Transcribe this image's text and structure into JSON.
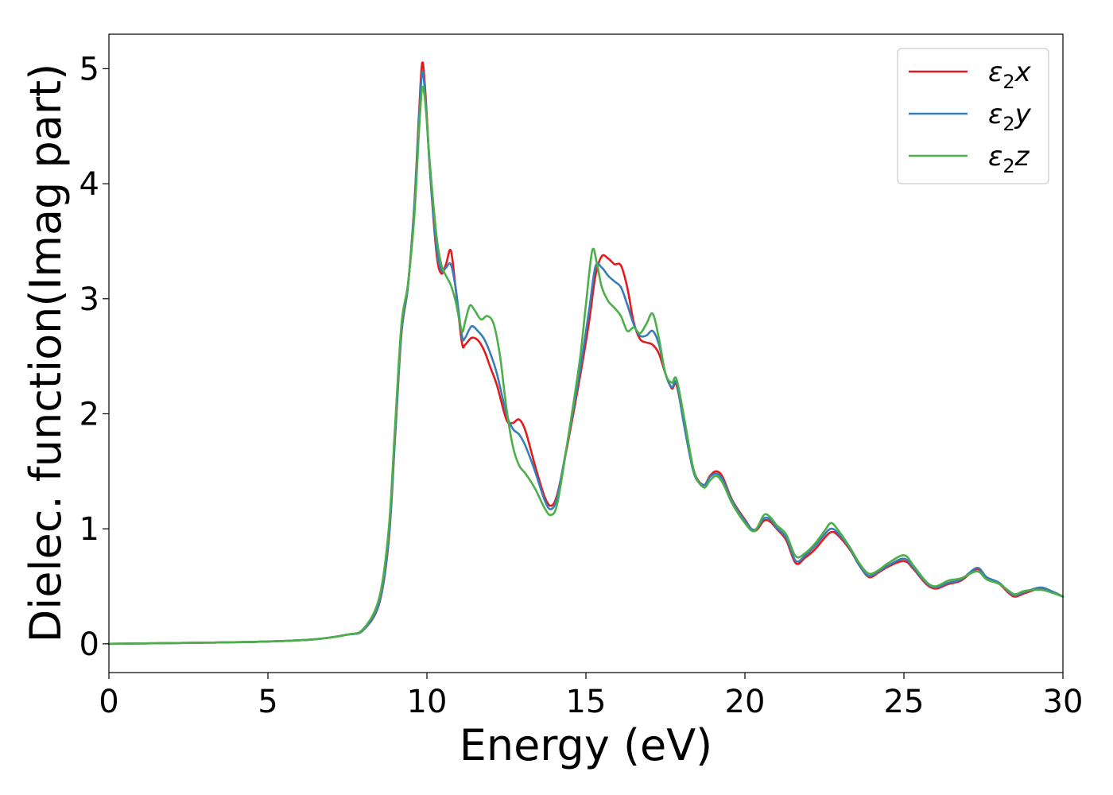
{
  "chart_data": {
    "type": "line",
    "title": "",
    "xlabel": "Energy (eV)",
    "ylabel": "Dielec. function(Imag part)",
    "xlim": [
      0,
      30
    ],
    "ylim": [
      -0.25,
      5.3
    ],
    "xticks": [
      0,
      5,
      10,
      15,
      20,
      25,
      30
    ],
    "xtick_labels": [
      "0",
      "5",
      "10",
      "15",
      "20",
      "25",
      "30"
    ],
    "yticks": [
      0,
      1,
      2,
      3,
      4,
      5
    ],
    "ytick_labels": [
      "0",
      "1",
      "2",
      "3",
      "4",
      "5"
    ],
    "grid": false,
    "legend_position": "top-right",
    "series": [
      {
        "name": "ε2x",
        "legend_main": "ε",
        "legend_sub": "2",
        "legend_suffix": "x",
        "color": "#e41a1c",
        "points": [
          [
            0,
            0.0
          ],
          [
            3,
            0.01
          ],
          [
            5,
            0.02
          ],
          [
            6.5,
            0.04
          ],
          [
            7.5,
            0.08
          ],
          [
            8,
            0.12
          ],
          [
            8.5,
            0.35
          ],
          [
            8.8,
            0.9
          ],
          [
            9.0,
            1.8
          ],
          [
            9.2,
            2.7
          ],
          [
            9.4,
            3.1
          ],
          [
            9.6,
            3.8
          ],
          [
            9.75,
            4.6
          ],
          [
            9.85,
            5.05
          ],
          [
            9.95,
            4.8
          ],
          [
            10.1,
            4.1
          ],
          [
            10.3,
            3.4
          ],
          [
            10.45,
            3.22
          ],
          [
            10.6,
            3.3
          ],
          [
            10.75,
            3.42
          ],
          [
            10.9,
            3.1
          ],
          [
            11.1,
            2.62
          ],
          [
            11.2,
            2.6
          ],
          [
            11.4,
            2.66
          ],
          [
            11.6,
            2.64
          ],
          [
            11.8,
            2.55
          ],
          [
            12.0,
            2.4
          ],
          [
            12.2,
            2.25
          ],
          [
            12.5,
            1.95
          ],
          [
            12.7,
            1.92
          ],
          [
            12.9,
            1.95
          ],
          [
            13.1,
            1.85
          ],
          [
            13.4,
            1.55
          ],
          [
            13.7,
            1.28
          ],
          [
            13.9,
            1.2
          ],
          [
            14.1,
            1.3
          ],
          [
            14.4,
            1.7
          ],
          [
            14.8,
            2.3
          ],
          [
            15.1,
            2.8
          ],
          [
            15.3,
            3.2
          ],
          [
            15.5,
            3.37
          ],
          [
            15.7,
            3.35
          ],
          [
            15.9,
            3.3
          ],
          [
            16.1,
            3.29
          ],
          [
            16.3,
            3.1
          ],
          [
            16.5,
            2.8
          ],
          [
            16.7,
            2.65
          ],
          [
            16.9,
            2.62
          ],
          [
            17.1,
            2.6
          ],
          [
            17.3,
            2.52
          ],
          [
            17.5,
            2.35
          ],
          [
            17.7,
            2.22
          ],
          [
            17.85,
            2.25
          ],
          [
            18.1,
            1.9
          ],
          [
            18.4,
            1.5
          ],
          [
            18.7,
            1.38
          ],
          [
            18.9,
            1.46
          ],
          [
            19.1,
            1.5
          ],
          [
            19.3,
            1.45
          ],
          [
            19.6,
            1.25
          ],
          [
            20.0,
            1.08
          ],
          [
            20.3,
            0.98
          ],
          [
            20.6,
            1.07
          ],
          [
            20.8,
            1.06
          ],
          [
            21.0,
            1.0
          ],
          [
            21.3,
            0.9
          ],
          [
            21.6,
            0.7
          ],
          [
            21.9,
            0.75
          ],
          [
            22.2,
            0.82
          ],
          [
            22.5,
            0.92
          ],
          [
            22.7,
            0.97
          ],
          [
            22.9,
            0.95
          ],
          [
            23.3,
            0.82
          ],
          [
            23.6,
            0.68
          ],
          [
            23.9,
            0.58
          ],
          [
            24.2,
            0.62
          ],
          [
            24.5,
            0.67
          ],
          [
            25.0,
            0.72
          ],
          [
            25.3,
            0.65
          ],
          [
            25.7,
            0.52
          ],
          [
            26.0,
            0.48
          ],
          [
            26.4,
            0.52
          ],
          [
            26.8,
            0.55
          ],
          [
            27.3,
            0.65
          ],
          [
            27.6,
            0.57
          ],
          [
            28.0,
            0.52
          ],
          [
            28.3,
            0.44
          ],
          [
            28.5,
            0.41
          ],
          [
            28.8,
            0.44
          ],
          [
            29.3,
            0.48
          ],
          [
            29.7,
            0.45
          ],
          [
            30.0,
            0.41
          ]
        ]
      },
      {
        "name": "ε2y",
        "legend_main": "ε",
        "legend_sub": "2",
        "legend_suffix": "y",
        "color": "#377eb8",
        "points": [
          [
            0,
            0.0
          ],
          [
            3,
            0.01
          ],
          [
            5,
            0.02
          ],
          [
            6.5,
            0.04
          ],
          [
            7.5,
            0.08
          ],
          [
            8,
            0.12
          ],
          [
            8.5,
            0.36
          ],
          [
            8.8,
            0.92
          ],
          [
            9.0,
            1.82
          ],
          [
            9.2,
            2.72
          ],
          [
            9.4,
            3.1
          ],
          [
            9.6,
            3.78
          ],
          [
            9.75,
            4.55
          ],
          [
            9.85,
            4.97
          ],
          [
            9.95,
            4.75
          ],
          [
            10.1,
            4.1
          ],
          [
            10.3,
            3.45
          ],
          [
            10.45,
            3.25
          ],
          [
            10.6,
            3.27
          ],
          [
            10.75,
            3.3
          ],
          [
            10.9,
            3.1
          ],
          [
            11.1,
            2.68
          ],
          [
            11.2,
            2.66
          ],
          [
            11.4,
            2.76
          ],
          [
            11.6,
            2.72
          ],
          [
            11.8,
            2.65
          ],
          [
            12.0,
            2.52
          ],
          [
            12.2,
            2.35
          ],
          [
            12.5,
            2.0
          ],
          [
            12.7,
            1.87
          ],
          [
            12.9,
            1.82
          ],
          [
            13.1,
            1.72
          ],
          [
            13.4,
            1.5
          ],
          [
            13.7,
            1.25
          ],
          [
            13.9,
            1.17
          ],
          [
            14.1,
            1.28
          ],
          [
            14.4,
            1.72
          ],
          [
            14.8,
            2.35
          ],
          [
            15.1,
            2.9
          ],
          [
            15.3,
            3.28
          ],
          [
            15.5,
            3.27
          ],
          [
            15.7,
            3.2
          ],
          [
            15.9,
            3.15
          ],
          [
            16.1,
            3.1
          ],
          [
            16.3,
            2.95
          ],
          [
            16.5,
            2.78
          ],
          [
            16.7,
            2.68
          ],
          [
            16.9,
            2.68
          ],
          [
            17.1,
            2.72
          ],
          [
            17.3,
            2.6
          ],
          [
            17.5,
            2.35
          ],
          [
            17.7,
            2.23
          ],
          [
            17.85,
            2.27
          ],
          [
            18.1,
            1.88
          ],
          [
            18.4,
            1.48
          ],
          [
            18.7,
            1.38
          ],
          [
            18.9,
            1.45
          ],
          [
            19.1,
            1.48
          ],
          [
            19.3,
            1.43
          ],
          [
            19.6,
            1.24
          ],
          [
            20.0,
            1.07
          ],
          [
            20.3,
            0.99
          ],
          [
            20.6,
            1.09
          ],
          [
            20.8,
            1.08
          ],
          [
            21.0,
            1.01
          ],
          [
            21.3,
            0.92
          ],
          [
            21.6,
            0.72
          ],
          [
            21.9,
            0.77
          ],
          [
            22.2,
            0.85
          ],
          [
            22.5,
            0.95
          ],
          [
            22.7,
            1.0
          ],
          [
            22.9,
            0.97
          ],
          [
            23.3,
            0.83
          ],
          [
            23.6,
            0.68
          ],
          [
            23.9,
            0.59
          ],
          [
            24.2,
            0.63
          ],
          [
            24.5,
            0.68
          ],
          [
            25.0,
            0.74
          ],
          [
            25.3,
            0.66
          ],
          [
            25.7,
            0.53
          ],
          [
            26.0,
            0.49
          ],
          [
            26.4,
            0.53
          ],
          [
            26.8,
            0.56
          ],
          [
            27.3,
            0.66
          ],
          [
            27.6,
            0.58
          ],
          [
            28.0,
            0.53
          ],
          [
            28.3,
            0.45
          ],
          [
            28.5,
            0.42
          ],
          [
            28.8,
            0.45
          ],
          [
            29.3,
            0.49
          ],
          [
            29.7,
            0.45
          ],
          [
            30.0,
            0.41
          ]
        ]
      },
      {
        "name": "ε2z",
        "legend_main": "ε",
        "legend_sub": "2",
        "legend_suffix": "z",
        "color": "#4daf4a",
        "points": [
          [
            0,
            0.0
          ],
          [
            3,
            0.01
          ],
          [
            5,
            0.02
          ],
          [
            6.5,
            0.04
          ],
          [
            7.5,
            0.08
          ],
          [
            8,
            0.13
          ],
          [
            8.5,
            0.4
          ],
          [
            8.8,
            1.0
          ],
          [
            9.0,
            1.9
          ],
          [
            9.2,
            2.78
          ],
          [
            9.4,
            3.12
          ],
          [
            9.6,
            3.7
          ],
          [
            9.75,
            4.45
          ],
          [
            9.85,
            4.83
          ],
          [
            9.95,
            4.7
          ],
          [
            10.1,
            4.15
          ],
          [
            10.3,
            3.55
          ],
          [
            10.45,
            3.3
          ],
          [
            10.6,
            3.2
          ],
          [
            10.75,
            3.12
          ],
          [
            10.9,
            2.98
          ],
          [
            11.1,
            2.72
          ],
          [
            11.2,
            2.8
          ],
          [
            11.35,
            2.94
          ],
          [
            11.5,
            2.9
          ],
          [
            11.7,
            2.82
          ],
          [
            11.9,
            2.85
          ],
          [
            12.1,
            2.78
          ],
          [
            12.3,
            2.5
          ],
          [
            12.5,
            2.05
          ],
          [
            12.7,
            1.72
          ],
          [
            12.9,
            1.55
          ],
          [
            13.1,
            1.48
          ],
          [
            13.4,
            1.35
          ],
          [
            13.7,
            1.18
          ],
          [
            13.9,
            1.12
          ],
          [
            14.1,
            1.22
          ],
          [
            14.4,
            1.72
          ],
          [
            14.8,
            2.45
          ],
          [
            15.0,
            2.95
          ],
          [
            15.2,
            3.42
          ],
          [
            15.35,
            3.3
          ],
          [
            15.5,
            3.1
          ],
          [
            15.7,
            2.98
          ],
          [
            15.9,
            2.92
          ],
          [
            16.1,
            2.85
          ],
          [
            16.3,
            2.72
          ],
          [
            16.5,
            2.75
          ],
          [
            16.7,
            2.7
          ],
          [
            16.9,
            2.78
          ],
          [
            17.1,
            2.87
          ],
          [
            17.3,
            2.65
          ],
          [
            17.5,
            2.35
          ],
          [
            17.7,
            2.27
          ],
          [
            17.85,
            2.3
          ],
          [
            18.1,
            1.95
          ],
          [
            18.4,
            1.5
          ],
          [
            18.7,
            1.36
          ],
          [
            18.9,
            1.42
          ],
          [
            19.1,
            1.46
          ],
          [
            19.3,
            1.4
          ],
          [
            19.6,
            1.22
          ],
          [
            20.0,
            1.05
          ],
          [
            20.3,
            0.98
          ],
          [
            20.6,
            1.12
          ],
          [
            20.8,
            1.1
          ],
          [
            21.0,
            1.03
          ],
          [
            21.3,
            0.95
          ],
          [
            21.6,
            0.76
          ],
          [
            21.9,
            0.79
          ],
          [
            22.2,
            0.87
          ],
          [
            22.5,
            0.98
          ],
          [
            22.7,
            1.05
          ],
          [
            22.9,
            1.0
          ],
          [
            23.3,
            0.84
          ],
          [
            23.6,
            0.7
          ],
          [
            23.9,
            0.61
          ],
          [
            24.2,
            0.64
          ],
          [
            24.5,
            0.7
          ],
          [
            25.0,
            0.77
          ],
          [
            25.3,
            0.68
          ],
          [
            25.7,
            0.54
          ],
          [
            26.0,
            0.5
          ],
          [
            26.4,
            0.55
          ],
          [
            26.8,
            0.57
          ],
          [
            27.3,
            0.63
          ],
          [
            27.6,
            0.56
          ],
          [
            28.0,
            0.52
          ],
          [
            28.3,
            0.46
          ],
          [
            28.5,
            0.43
          ],
          [
            28.8,
            0.46
          ],
          [
            29.3,
            0.47
          ],
          [
            29.7,
            0.44
          ],
          [
            30.0,
            0.41
          ]
        ]
      }
    ]
  }
}
